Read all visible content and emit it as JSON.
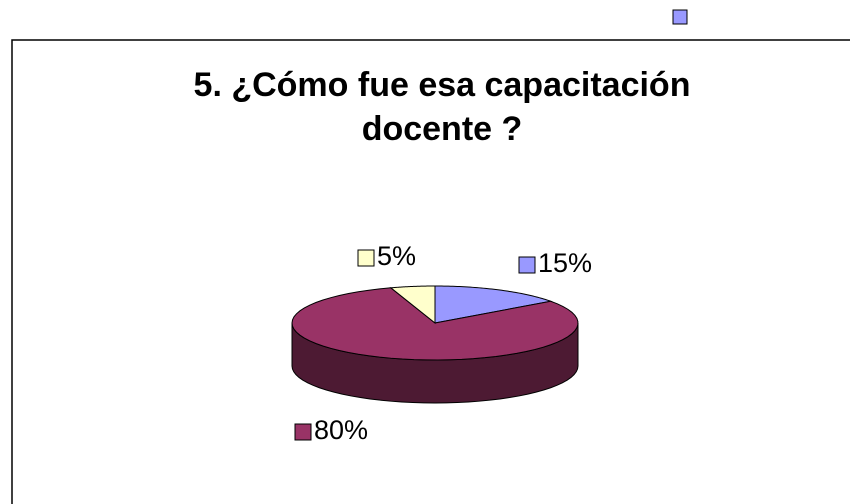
{
  "chart_data": {
    "type": "pie3d",
    "title": "5. ¿Cómo fue esa capacitación docente ?",
    "values": [
      15,
      80,
      5
    ],
    "value_labels": [
      "15%",
      "80%",
      "5%"
    ],
    "colors": [
      "#9999ff",
      "#993366",
      "#ffffcc"
    ]
  }
}
